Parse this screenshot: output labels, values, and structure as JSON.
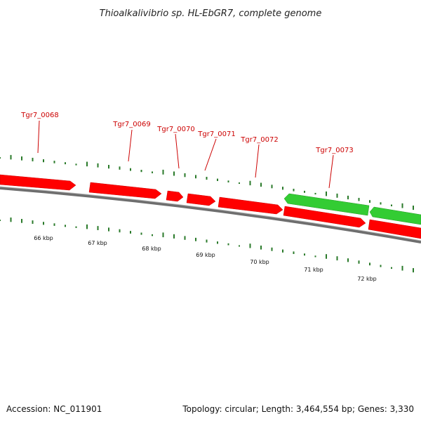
{
  "title": "Thioalkalivibrio sp. HL-EbGR7, complete genome",
  "footer": {
    "accession": "Accession: NC_011901",
    "summary": "Topology: circular; Length: 3,464,554 bp; Genes: 3,330"
  },
  "colors": {
    "forward_gene": "#ff0000",
    "reverse_gene": "#33cc33",
    "label": "#cc0000",
    "backbone": "#808080",
    "ticks": "#2a7a2a"
  },
  "genes": [
    {
      "id": "g1",
      "strand": "forward",
      "label": "Tgr7_0068"
    },
    {
      "id": "g2",
      "strand": "forward",
      "label": "Tgr7_0069"
    },
    {
      "id": "g3",
      "strand": "forward",
      "label": "Tgr7_0070"
    },
    {
      "id": "g4",
      "strand": "forward",
      "label": "Tgr7_0071"
    },
    {
      "id": "g5",
      "strand": "forward",
      "label": "Tgr7_0072"
    },
    {
      "id": "g6",
      "strand": "forward",
      "label": "Tgr7_0073"
    },
    {
      "id": "g7",
      "strand": "forward",
      "label": ""
    },
    {
      "id": "g8",
      "strand": "reverse",
      "label": ""
    },
    {
      "id": "g9",
      "strand": "reverse",
      "label": ""
    }
  ],
  "scale_labels": [
    "66 kbp",
    "67 kbp",
    "68 kbp",
    "69 kbp",
    "70 kbp",
    "71 kbp",
    "72 kbp"
  ]
}
